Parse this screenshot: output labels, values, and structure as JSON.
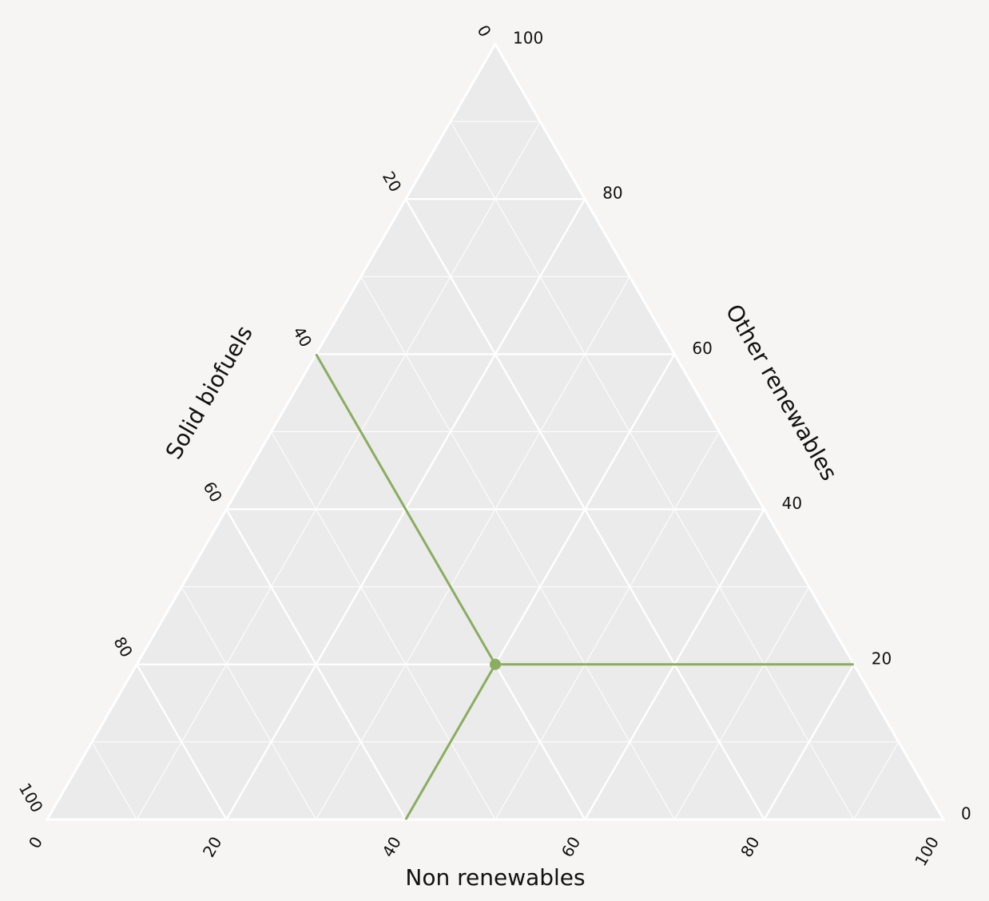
{
  "chart_data": {
    "type": "ternary",
    "axes": {
      "bottom": {
        "label": "Non renewables",
        "ticks": [
          "0",
          "20",
          "40",
          "60",
          "80",
          "100"
        ]
      },
      "left": {
        "label": "Solid biofuels",
        "ticks": [
          "0",
          "20",
          "40",
          "60",
          "80",
          "100"
        ]
      },
      "right": {
        "label": "Other renewables",
        "ticks": [
          "0",
          "20",
          "40",
          "60",
          "80",
          "100"
        ]
      }
    },
    "grid": true,
    "major_step": 20,
    "minor_step": 10,
    "point": {
      "non_renewables": 40,
      "solid_biofuels": 40,
      "other_renewables": 20
    },
    "colors": {
      "background": "#f6f5f3",
      "plot_area": "#ebebeb",
      "grid": "#ffffff",
      "marker": "#8aad60"
    }
  }
}
